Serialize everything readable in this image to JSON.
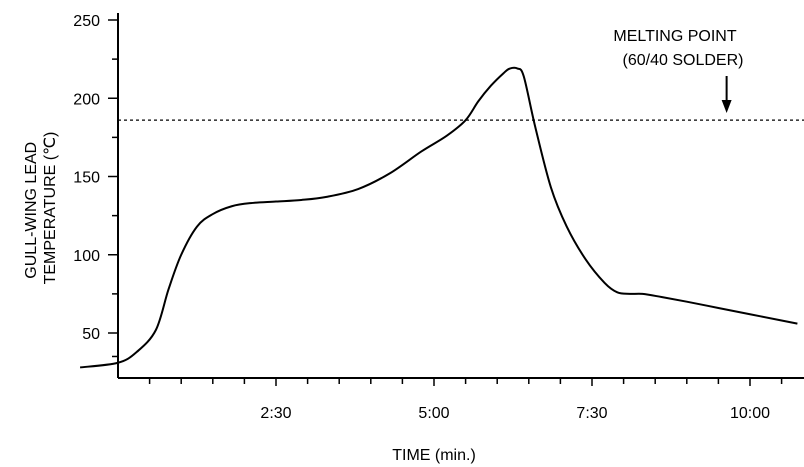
{
  "chart_data": {
    "type": "line",
    "xlabel": "TIME  (min.)",
    "ylabel": [
      "GULL-WING LEAD",
      "TEMPERATURE (℃)"
    ],
    "xlim": [
      0,
      10.75
    ],
    "ylim": [
      30,
      255
    ],
    "x_ticks": [
      {
        "value": 2.5,
        "label": "2:30"
      },
      {
        "value": 5.0,
        "label": "5:00"
      },
      {
        "value": 7.5,
        "label": "7:30"
      },
      {
        "value": 10.0,
        "label": "10:00"
      }
    ],
    "x_minor_ticks": [
      0.5,
      1.0,
      1.5,
      2.0,
      3.0,
      3.5,
      4.0,
      4.5,
      5.5,
      6.0,
      6.5,
      7.0,
      8.0,
      8.5,
      9.0,
      9.5,
      10.5
    ],
    "y_ticks": [
      {
        "value": 50,
        "label": "50"
      },
      {
        "value": 100,
        "label": "100"
      },
      {
        "value": 150,
        "label": "150"
      },
      {
        "value": 200,
        "label": "200"
      },
      {
        "value": 250,
        "label": "250"
      }
    ],
    "y_minor_ticks": [
      35,
      75,
      125,
      175,
      225
    ],
    "grid": false,
    "series": [
      {
        "x": [
          -0.6,
          0,
          0.3,
          0.6,
          0.8,
          1.0,
          1.25,
          1.5,
          1.8,
          2.1,
          2.5,
          2.9,
          3.3,
          3.8,
          4.3,
          4.8,
          5.2,
          5.5,
          5.7,
          5.9,
          6.1,
          6.2,
          6.32,
          6.42,
          6.6,
          6.85,
          7.1,
          7.4,
          7.7,
          7.9,
          8.1,
          8.3,
          8.6,
          9.0,
          9.5,
          10.0,
          10.5,
          10.75
        ],
        "y": [
          28,
          31,
          38,
          52,
          78,
          100,
          118,
          126,
          131,
          133,
          134,
          135,
          137,
          142,
          152,
          166,
          176,
          186,
          198,
          208,
          216,
          219,
          219,
          214,
          182,
          143,
          118,
          97,
          82,
          76,
          75,
          75,
          73,
          70,
          66,
          62,
          58,
          56
        ]
      }
    ],
    "reference_line": {
      "y": 186,
      "style": "dotted"
    },
    "annotation": {
      "lines": [
        "MELTING POINT",
        "(60/40 SOLDER)"
      ],
      "arrow_x": 9.63
    }
  }
}
